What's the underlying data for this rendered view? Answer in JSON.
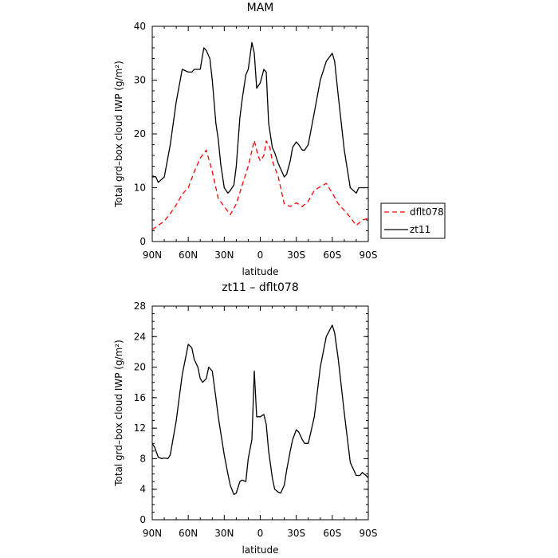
{
  "chart_data": [
    {
      "type": "line",
      "title": "MAM",
      "xlabel": "latitude",
      "ylabel": "Total grd–box cloud IWP (g/m²)",
      "xlim": [
        90,
        -90
      ],
      "ylim": [
        0,
        40
      ],
      "xticks": [
        90,
        60,
        30,
        0,
        -30,
        -60,
        -90
      ],
      "xtick_labels": [
        "90N",
        "60N",
        "30N",
        "0",
        "30S",
        "60S",
        "90S"
      ],
      "yticks": [
        0,
        10,
        20,
        30,
        40
      ],
      "ytick_labels": [
        "0",
        "10",
        "20",
        "30",
        "40"
      ],
      "grid": false,
      "legend": {
        "placement": "right"
      },
      "series": [
        {
          "name": "dflt078",
          "color": "#ff0000",
          "dash": "dashed",
          "x": [
            90,
            85,
            80,
            75,
            70,
            65,
            60,
            55,
            50,
            45,
            40,
            35,
            30,
            25,
            20,
            15,
            10,
            5,
            2,
            0,
            -3,
            -5,
            -8,
            -10,
            -15,
            -20,
            -25,
            -30,
            -35,
            -40,
            -45,
            -50,
            -55,
            -60,
            -65,
            -70,
            -75,
            -80,
            -85,
            -90
          ],
          "y": [
            2.2,
            3.0,
            3.8,
            5.2,
            6.8,
            8.8,
            10.0,
            13.0,
            15.5,
            17.0,
            13.0,
            8.0,
            6.5,
            5.0,
            7.0,
            10.5,
            14.0,
            18.8,
            16.0,
            15.0,
            16.0,
            18.7,
            17.5,
            15.0,
            12.0,
            7.0,
            6.5,
            7.2,
            6.5,
            7.5,
            9.5,
            10.2,
            10.8,
            9.0,
            7.0,
            5.8,
            4.5,
            3.0,
            4.0,
            4.3
          ]
        },
        {
          "name": "zt11",
          "color": "#000000",
          "dash": "solid",
          "x": [
            90,
            87,
            85,
            80,
            75,
            70,
            65,
            60,
            57,
            55,
            50,
            47,
            45,
            42,
            40,
            37,
            35,
            33,
            30,
            27,
            25,
            22,
            20,
            17,
            15,
            12,
            10,
            7,
            5,
            3,
            0,
            -3,
            -5,
            -7,
            -10,
            -12,
            -15,
            -20,
            -22,
            -25,
            -27,
            -30,
            -32,
            -35,
            -37,
            -40,
            -45,
            -50,
            -55,
            -60,
            -62,
            -65,
            -70,
            -75,
            -80,
            -82,
            -85,
            -90
          ],
          "y": [
            12.2,
            12.0,
            11.0,
            12.0,
            18.0,
            26.0,
            32.0,
            31.5,
            31.5,
            32.0,
            32.0,
            36.0,
            35.5,
            34.0,
            30.0,
            22.0,
            19.0,
            14.5,
            10.0,
            9.0,
            9.5,
            10.5,
            14.0,
            23.0,
            26.5,
            31.0,
            32.0,
            37.0,
            35.0,
            28.5,
            29.5,
            32.0,
            31.5,
            22.0,
            17.5,
            16.5,
            14.5,
            12.0,
            12.5,
            15.0,
            17.5,
            18.5,
            18.0,
            17.0,
            17.0,
            18.0,
            24.0,
            30.0,
            33.5,
            35.0,
            33.5,
            27.0,
            17.0,
            10.0,
            9.0,
            10.0,
            10.0,
            10.0
          ]
        }
      ]
    },
    {
      "type": "line",
      "title": "zt11 – dflt078",
      "xlabel": "latitude",
      "ylabel": "Total grd–box cloud IWP (g/m²)",
      "xlim": [
        90,
        -90
      ],
      "ylim": [
        0,
        28
      ],
      "xticks": [
        90,
        60,
        30,
        0,
        -30,
        -60,
        -90
      ],
      "xtick_labels": [
        "90N",
        "60N",
        "30N",
        "0",
        "30S",
        "60S",
        "90S"
      ],
      "yticks": [
        0,
        4,
        8,
        12,
        16,
        20,
        24,
        28
      ],
      "ytick_labels": [
        "0",
        "4",
        "8",
        "12",
        "16",
        "20",
        "24",
        "28"
      ],
      "grid": false,
      "series": [
        {
          "color": "#000000",
          "dash": "solid",
          "x": [
            90,
            88,
            85,
            82,
            80,
            77,
            75,
            70,
            65,
            60,
            57,
            55,
            52,
            50,
            48,
            45,
            43,
            40,
            37,
            35,
            32,
            30,
            27,
            25,
            22,
            20,
            17,
            15,
            12,
            10,
            7,
            5,
            3,
            0,
            -3,
            -5,
            -7,
            -10,
            -12,
            -15,
            -17,
            -20,
            -22,
            -25,
            -27,
            -30,
            -32,
            -35,
            -37,
            -40,
            -45,
            -50,
            -55,
            -60,
            -62,
            -65,
            -70,
            -75,
            -80,
            -83,
            -85,
            -88,
            -90
          ],
          "y": [
            10.0,
            9.5,
            8.2,
            8.0,
            8.1,
            8.0,
            8.5,
            13.0,
            19.0,
            23.0,
            22.5,
            21.0,
            20.0,
            18.5,
            18.0,
            18.5,
            20.0,
            19.5,
            16.0,
            13.5,
            10.5,
            8.5,
            6.0,
            4.5,
            3.3,
            3.5,
            5.0,
            5.2,
            5.0,
            8.0,
            10.5,
            19.5,
            13.5,
            13.5,
            13.8,
            12.5,
            9.0,
            5.5,
            4.0,
            3.6,
            3.5,
            4.5,
            6.5,
            9.0,
            10.5,
            11.8,
            11.5,
            10.5,
            10.0,
            10.0,
            13.5,
            20.0,
            24.0,
            25.5,
            24.5,
            21.0,
            14.0,
            7.5,
            5.8,
            5.8,
            6.2,
            5.8,
            5.5
          ]
        }
      ]
    }
  ]
}
